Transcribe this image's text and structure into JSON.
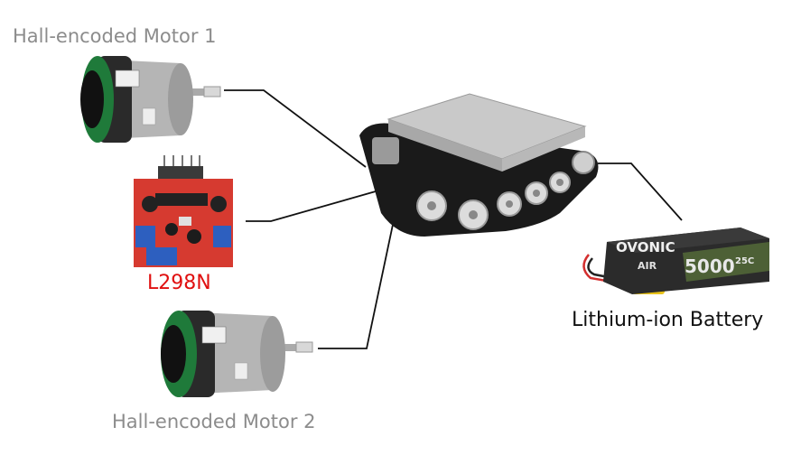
{
  "labels": {
    "motor1": "Hall-encoded Motor 1",
    "motor2": "Hall-encoded Motor 2",
    "driver": "L298N",
    "battery": "Lithium-ion Battery"
  },
  "battery_print": {
    "brand": "OVONIC",
    "series": "AIR",
    "capacity": "5000",
    "rating": "25C"
  },
  "colors": {
    "motor_label": "#8c8c8c",
    "driver_label": "#e01010",
    "battery_label": "#111111",
    "connector": "#111111",
    "pcb": "#d63a30",
    "chassis": "#c9c9c9",
    "track": "#1a1a1a",
    "battery_body": "#2b2b2b",
    "battery_accent": "#8bc34a"
  }
}
